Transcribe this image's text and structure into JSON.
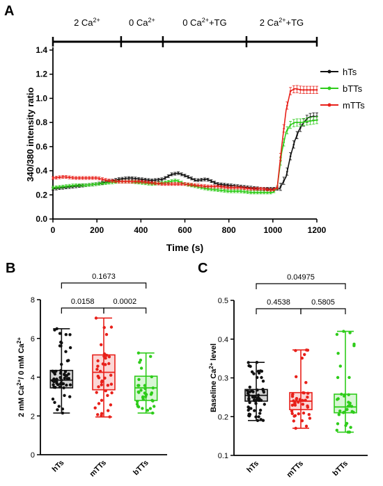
{
  "figure": {
    "panel_a_letter": "A",
    "panel_b_letter": "B",
    "panel_c_letter": "C"
  },
  "colors": {
    "hTs": "#111111",
    "bTTs": "#2ecc1a",
    "mTTs": "#e8201a",
    "axis": "#000000"
  },
  "chart_data": [
    {
      "panel": "A",
      "type": "line",
      "xlabel": "Time (s)",
      "ylabel": "340/380 intensity ratio",
      "xlim": [
        0,
        1200
      ],
      "ylim": [
        0,
        1.4
      ],
      "xticks": [
        "0",
        "200",
        "400",
        "600",
        "800",
        "1000",
        "1200"
      ],
      "yticks": [
        "0.0",
        "0.2",
        "0.4",
        "0.6",
        "0.8",
        "1.0",
        "1.2",
        "1.4"
      ],
      "legend_position": "top-right",
      "conditions": [
        {
          "start": 0,
          "end": 310,
          "base": "2 Ca",
          "sup": "2+",
          "tail": ""
        },
        {
          "start": 310,
          "end": 500,
          "base": "0 Ca",
          "sup": "2+",
          "tail": ""
        },
        {
          "start": 500,
          "end": 880,
          "base": "0 Ca",
          "sup": "2+",
          "tail": "+TG"
        },
        {
          "start": 880,
          "end": 1200,
          "base": "2 Ca",
          "sup": "2+",
          "tail": "+TG"
        }
      ],
      "series": [
        {
          "name": "hTs",
          "color_key": "hTs",
          "points": [
            [
              0,
              0.25
            ],
            [
              50,
              0.26
            ],
            [
              100,
              0.27
            ],
            [
              150,
              0.28
            ],
            [
              200,
              0.29
            ],
            [
              250,
              0.31
            ],
            [
              300,
              0.33
            ],
            [
              350,
              0.34
            ],
            [
              400,
              0.33
            ],
            [
              450,
              0.32
            ],
            [
              500,
              0.33
            ],
            [
              540,
              0.37
            ],
            [
              570,
              0.38
            ],
            [
              600,
              0.36
            ],
            [
              650,
              0.32
            ],
            [
              700,
              0.33
            ],
            [
              750,
              0.29
            ],
            [
              800,
              0.28
            ],
            [
              850,
              0.27
            ],
            [
              900,
              0.26
            ],
            [
              950,
              0.25
            ],
            [
              1000,
              0.25
            ],
            [
              1030,
              0.25
            ],
            [
              1060,
              0.35
            ],
            [
              1080,
              0.52
            ],
            [
              1100,
              0.65
            ],
            [
              1120,
              0.74
            ],
            [
              1140,
              0.8
            ],
            [
              1160,
              0.84
            ],
            [
              1180,
              0.85
            ],
            [
              1200,
              0.85
            ]
          ]
        },
        {
          "name": "bTTs",
          "color_key": "bTTs",
          "points": [
            [
              0,
              0.26
            ],
            [
              50,
              0.27
            ],
            [
              100,
              0.28
            ],
            [
              150,
              0.28
            ],
            [
              200,
              0.29
            ],
            [
              250,
              0.3
            ],
            [
              300,
              0.31
            ],
            [
              350,
              0.31
            ],
            [
              400,
              0.3
            ],
            [
              450,
              0.29
            ],
            [
              500,
              0.3
            ],
            [
              530,
              0.31
            ],
            [
              560,
              0.32
            ],
            [
              600,
              0.29
            ],
            [
              650,
              0.27
            ],
            [
              700,
              0.25
            ],
            [
              750,
              0.24
            ],
            [
              800,
              0.23
            ],
            [
              850,
              0.23
            ],
            [
              900,
              0.22
            ],
            [
              950,
              0.22
            ],
            [
              1000,
              0.22
            ],
            [
              1020,
              0.26
            ],
            [
              1040,
              0.55
            ],
            [
              1060,
              0.72
            ],
            [
              1080,
              0.78
            ],
            [
              1100,
              0.8
            ],
            [
              1130,
              0.8
            ],
            [
              1160,
              0.81
            ],
            [
              1200,
              0.82
            ]
          ]
        },
        {
          "name": "mTTs",
          "color_key": "mTTs",
          "points": [
            [
              0,
              0.34
            ],
            [
              50,
              0.35
            ],
            [
              100,
              0.34
            ],
            [
              150,
              0.34
            ],
            [
              200,
              0.34
            ],
            [
              250,
              0.32
            ],
            [
              300,
              0.31
            ],
            [
              350,
              0.31
            ],
            [
              400,
              0.31
            ],
            [
              450,
              0.3
            ],
            [
              500,
              0.29
            ],
            [
              550,
              0.29
            ],
            [
              600,
              0.29
            ],
            [
              650,
              0.28
            ],
            [
              700,
              0.27
            ],
            [
              750,
              0.27
            ],
            [
              800,
              0.26
            ],
            [
              850,
              0.26
            ],
            [
              900,
              0.25
            ],
            [
              950,
              0.25
            ],
            [
              1000,
              0.24
            ],
            [
              1020,
              0.26
            ],
            [
              1040,
              0.6
            ],
            [
              1060,
              0.9
            ],
            [
              1080,
              1.06
            ],
            [
              1100,
              1.08
            ],
            [
              1130,
              1.07
            ],
            [
              1160,
              1.07
            ],
            [
              1200,
              1.07
            ]
          ]
        }
      ]
    },
    {
      "panel": "B",
      "type": "box",
      "ylabel": {
        "base1": "2 mM Ca",
        "sup1": "2+",
        "mid": "/ 0 mM Ca",
        "sup2": "2+"
      },
      "ylim": [
        0,
        8
      ],
      "yticks": [
        "0",
        "2",
        "4",
        "6",
        "8"
      ],
      "categories": [
        "hTs",
        "mTTs",
        "bTTs"
      ],
      "boxes": [
        {
          "name": "hTs",
          "color_key": "hTs",
          "min": 2.15,
          "q1": 3.45,
          "median": 3.85,
          "q3": 4.35,
          "max": 6.5,
          "n": 60
        },
        {
          "name": "mTTs",
          "color_key": "mTTs",
          "min": 1.95,
          "q1": 3.35,
          "median": 4.25,
          "q3": 5.15,
          "max": 7.05,
          "n": 40
        },
        {
          "name": "bTTs",
          "color_key": "bTTs",
          "min": 2.15,
          "q1": 2.8,
          "median": 3.45,
          "q3": 4.05,
          "max": 5.25,
          "n": 35
        }
      ],
      "comparisons": [
        {
          "from": 0,
          "to": 2,
          "label": "0.1673",
          "level": 2
        },
        {
          "from": 0,
          "to": 1,
          "label": "0.0158",
          "level": 1
        },
        {
          "from": 1,
          "to": 2,
          "label": "0.0002",
          "level": 1
        }
      ]
    },
    {
      "panel": "C",
      "type": "box",
      "ylabel": {
        "base1": "Baseline Ca",
        "sup1": "2+",
        "mid": " level",
        "sup2": ""
      },
      "ylim": [
        0.1,
        0.5
      ],
      "yticks": [
        "0.1",
        "0.2",
        "0.3",
        "0.4",
        "0.5"
      ],
      "categories": [
        "hTs",
        "mTTs",
        "bTTs"
      ],
      "boxes": [
        {
          "name": "hTs",
          "color_key": "hTs",
          "min": 0.19,
          "q1": 0.24,
          "median": 0.255,
          "q3": 0.27,
          "max": 0.34,
          "n": 60
        },
        {
          "name": "mTTs",
          "color_key": "mTTs",
          "min": 0.17,
          "q1": 0.218,
          "median": 0.24,
          "q3": 0.262,
          "max": 0.372,
          "n": 40
        },
        {
          "name": "bTTs",
          "color_key": "bTTs",
          "min": 0.16,
          "q1": 0.21,
          "median": 0.225,
          "q3": 0.258,
          "max": 0.42,
          "n": 35
        }
      ],
      "comparisons": [
        {
          "from": 0,
          "to": 2,
          "label": "0.04975",
          "level": 2
        },
        {
          "from": 0,
          "to": 1,
          "label": "0.4538",
          "level": 1
        },
        {
          "from": 1,
          "to": 2,
          "label": "0.5805",
          "level": 1
        }
      ]
    }
  ]
}
